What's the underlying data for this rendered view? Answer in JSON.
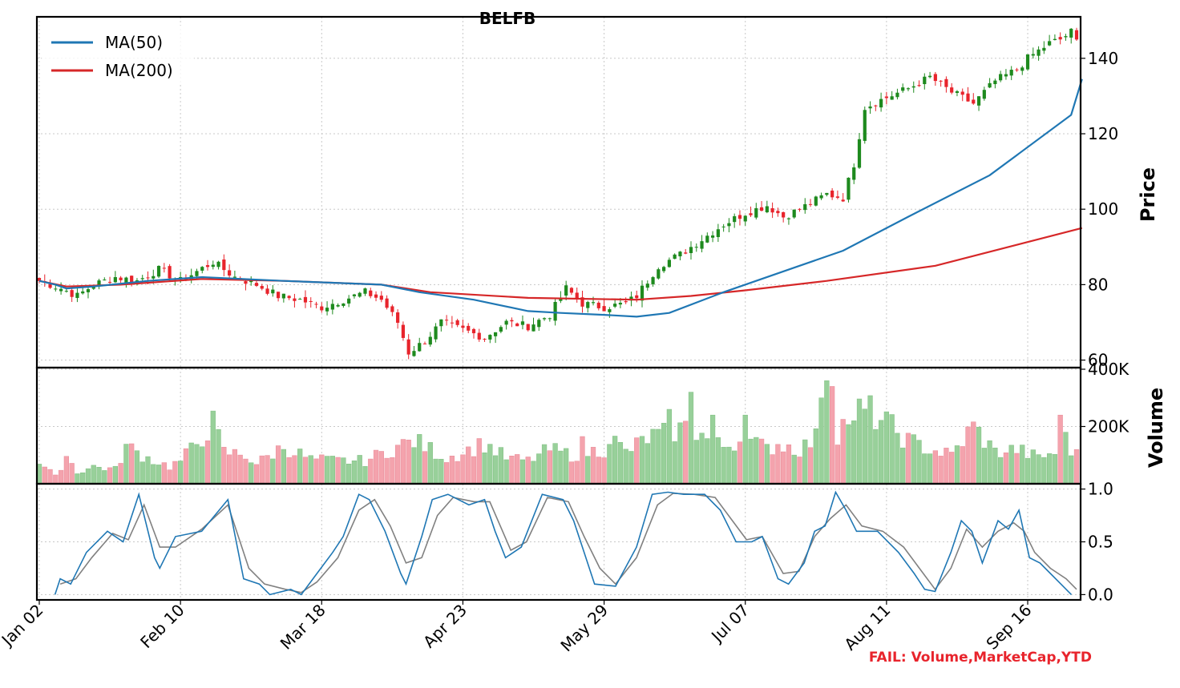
{
  "title": "BELFB",
  "fail_note": "FAIL: Volume,MarketCap,YTD",
  "colors": {
    "up": "#1e8a1e",
    "down": "#e8242c",
    "ma50": "#1f77b4",
    "ma200": "#d62728",
    "vol_up": "#98d09a",
    "vol_down": "#f4a3ad",
    "osc_k": "#1f77b4",
    "osc_d": "#808080",
    "fail": "#e8242c"
  },
  "chart_data": [
    {
      "type": "candlestick",
      "panel": "price",
      "ylabel": "Price",
      "ylim": [
        58,
        151
      ],
      "yticks": [
        60,
        80,
        100,
        120,
        140
      ],
      "ytick_labels": [
        "60",
        "80",
        "100",
        "120",
        "140"
      ],
      "grid": true,
      "legend": {
        "placement": "top-left",
        "entries": [
          "MA(50)",
          "MA(200)"
        ]
      },
      "x_tick_labels": [
        "Jan 02",
        "Feb 10",
        "Mar 18",
        "Apr 23",
        "May 29",
        "Jul 07",
        "Aug 11",
        "Sep 16"
      ],
      "x_tick_index": [
        0,
        26,
        52,
        78,
        104,
        130,
        156,
        182
      ],
      "n_bars": 192,
      "close_anchors": [
        [
          0,
          81
        ],
        [
          4,
          79
        ],
        [
          7,
          77
        ],
        [
          10,
          80
        ],
        [
          14,
          82
        ],
        [
          18,
          81
        ],
        [
          22,
          84
        ],
        [
          26,
          81
        ],
        [
          32,
          86
        ],
        [
          36,
          82
        ],
        [
          40,
          80
        ],
        [
          44,
          77
        ],
        [
          48,
          76
        ],
        [
          52,
          74
        ],
        [
          56,
          76
        ],
        [
          60,
          78
        ],
        [
          63,
          76
        ],
        [
          66,
          70
        ],
        [
          68,
          62
        ],
        [
          71,
          65
        ],
        [
          74,
          70
        ],
        [
          78,
          68
        ],
        [
          82,
          66
        ],
        [
          86,
          70
        ],
        [
          90,
          69
        ],
        [
          94,
          72
        ],
        [
          97,
          79
        ],
        [
          100,
          75
        ],
        [
          104,
          74
        ],
        [
          108,
          75
        ],
        [
          110,
          77
        ],
        [
          114,
          85
        ],
        [
          118,
          88
        ],
        [
          122,
          92
        ],
        [
          126,
          96
        ],
        [
          130,
          99
        ],
        [
          134,
          101
        ],
        [
          137,
          98
        ],
        [
          140,
          100
        ],
        [
          145,
          104
        ],
        [
          148,
          103
        ],
        [
          150,
          112
        ],
        [
          152,
          127
        ],
        [
          155,
          129
        ],
        [
          160,
          132
        ],
        [
          164,
          135
        ],
        [
          168,
          131
        ],
        [
          172,
          128
        ],
        [
          176,
          134
        ],
        [
          180,
          137
        ],
        [
          182,
          140
        ],
        [
          186,
          144
        ],
        [
          188,
          145
        ],
        [
          190,
          147
        ],
        [
          192,
          142
        ]
      ],
      "ma50": [
        [
          0,
          81
        ],
        [
          3,
          80
        ],
        [
          5,
          79
        ],
        [
          10,
          79.5
        ],
        [
          20,
          81
        ],
        [
          30,
          82
        ],
        [
          45,
          81
        ],
        [
          63,
          80
        ],
        [
          70,
          78
        ],
        [
          80,
          76
        ],
        [
          90,
          73
        ],
        [
          96,
          72.5
        ],
        [
          104,
          72
        ],
        [
          110,
          71.5
        ],
        [
          116,
          72.5
        ],
        [
          126,
          78
        ],
        [
          140,
          85
        ],
        [
          148,
          89
        ],
        [
          160,
          98
        ],
        [
          175,
          109
        ],
        [
          190,
          125
        ],
        [
          192,
          134.5
        ]
      ],
      "ma200": [
        [
          0,
          81
        ],
        [
          5,
          79.5
        ],
        [
          15,
          80
        ],
        [
          30,
          81.5
        ],
        [
          45,
          81
        ],
        [
          63,
          80
        ],
        [
          72,
          78
        ],
        [
          90,
          76.5
        ],
        [
          110,
          76
        ],
        [
          120,
          77
        ],
        [
          130,
          78.5
        ],
        [
          145,
          81
        ],
        [
          165,
          85
        ],
        [
          192,
          95
        ]
      ]
    },
    {
      "type": "bar",
      "panel": "volume",
      "ylabel": "Volume",
      "ylim": [
        0,
        400000
      ],
      "yticks": [
        200000,
        400000
      ],
      "ytick_labels": [
        "200K",
        "400K"
      ],
      "volume_anchors": [
        [
          0,
          75000
        ],
        [
          3,
          25000
        ],
        [
          5,
          100000
        ],
        [
          7,
          40000
        ],
        [
          10,
          60000
        ],
        [
          14,
          50000
        ],
        [
          16,
          130000
        ],
        [
          20,
          90000
        ],
        [
          24,
          60000
        ],
        [
          26,
          80000
        ],
        [
          28,
          120000
        ],
        [
          32,
          210000
        ],
        [
          34,
          110000
        ],
        [
          38,
          100000
        ],
        [
          40,
          70000
        ],
        [
          45,
          130000
        ],
        [
          50,
          85000
        ],
        [
          55,
          80000
        ],
        [
          60,
          80000
        ],
        [
          66,
          130000
        ],
        [
          69,
          150000
        ],
        [
          75,
          90000
        ],
        [
          78,
          110000
        ],
        [
          82,
          140000
        ],
        [
          86,
          90000
        ],
        [
          90,
          80000
        ],
        [
          94,
          120000
        ],
        [
          98,
          100000
        ],
        [
          104,
          120000
        ],
        [
          105,
          165000
        ],
        [
          108,
          110000
        ],
        [
          112,
          160000
        ],
        [
          116,
          180000
        ],
        [
          120,
          200000
        ],
        [
          124,
          140000
        ],
        [
          126,
          130000
        ],
        [
          130,
          160000
        ],
        [
          134,
          120000
        ],
        [
          136,
          140000
        ],
        [
          140,
          120000
        ],
        [
          144,
          170000
        ],
        [
          147,
          180000
        ],
        [
          150,
          260000
        ],
        [
          153,
          250000
        ],
        [
          156,
          210000
        ],
        [
          160,
          150000
        ],
        [
          164,
          120000
        ],
        [
          168,
          100000
        ],
        [
          172,
          200000
        ],
        [
          176,
          110000
        ],
        [
          180,
          120000
        ],
        [
          184,
          90000
        ],
        [
          187,
          110000
        ],
        [
          188,
          240000
        ],
        [
          190,
          120000
        ],
        [
          192,
          80000
        ]
      ],
      "volume_highlights": [
        [
          100,
          165000
        ],
        [
          116,
          260000
        ],
        [
          120,
          320000
        ],
        [
          124,
          240000
        ],
        [
          130,
          240000
        ],
        [
          144,
          300000
        ],
        [
          145,
          360000
        ],
        [
          146,
          340000
        ],
        [
          150,
          220000
        ],
        [
          188,
          240000
        ]
      ]
    },
    {
      "type": "line",
      "panel": "oscillator",
      "ylim": [
        -0.05,
        1.05
      ],
      "yticks": [
        0.0,
        0.5,
        1.0
      ],
      "ytick_labels": [
        "0.0",
        "0.5",
        "1.0"
      ],
      "k_anchors": [
        [
          3,
          0.0
        ],
        [
          4,
          0.15
        ],
        [
          6,
          0.1
        ],
        [
          9,
          0.4
        ],
        [
          13,
          0.6
        ],
        [
          16,
          0.5
        ],
        [
          19,
          0.95
        ],
        [
          22,
          0.35
        ],
        [
          23,
          0.25
        ],
        [
          26,
          0.55
        ],
        [
          31,
          0.6
        ],
        [
          36,
          0.9
        ],
        [
          39,
          0.15
        ],
        [
          42,
          0.1
        ],
        [
          44,
          0.0
        ],
        [
          48,
          0.05
        ],
        [
          50,
          0.0
        ],
        [
          53,
          0.2
        ],
        [
          56,
          0.4
        ],
        [
          58,
          0.55
        ],
        [
          61,
          0.95
        ],
        [
          63,
          0.9
        ],
        [
          66,
          0.6
        ],
        [
          69,
          0.2
        ],
        [
          70,
          0.1
        ],
        [
          73,
          0.55
        ],
        [
          75,
          0.9
        ],
        [
          78,
          0.95
        ],
        [
          82,
          0.85
        ],
        [
          85,
          0.9
        ],
        [
          87,
          0.6
        ],
        [
          89,
          0.35
        ],
        [
          92,
          0.45
        ],
        [
          96,
          0.95
        ],
        [
          100,
          0.9
        ],
        [
          102,
          0.7
        ],
        [
          104,
          0.4
        ],
        [
          106,
          0.1
        ],
        [
          110,
          0.08
        ],
        [
          114,
          0.45
        ],
        [
          117,
          0.95
        ],
        [
          120,
          0.97
        ],
        [
          123,
          0.95
        ],
        [
          127,
          0.95
        ],
        [
          130,
          0.8
        ],
        [
          133,
          0.5
        ],
        [
          136,
          0.5
        ],
        [
          138,
          0.55
        ],
        [
          141,
          0.15
        ],
        [
          143,
          0.1
        ],
        [
          146,
          0.3
        ],
        [
          148,
          0.6
        ],
        [
          150,
          0.65
        ],
        [
          152,
          0.97
        ],
        [
          154,
          0.8
        ],
        [
          156,
          0.6
        ],
        [
          160,
          0.6
        ],
        [
          164,
          0.4
        ],
        [
          167,
          0.2
        ],
        [
          169,
          0.05
        ],
        [
          171,
          0.03
        ],
        [
          174,
          0.4
        ],
        [
          176,
          0.7
        ],
        [
          178,
          0.6
        ],
        [
          180,
          0.3
        ],
        [
          183,
          0.7
        ],
        [
          185,
          0.62
        ],
        [
          187,
          0.8
        ],
        [
          189,
          0.35
        ],
        [
          191,
          0.3
        ],
        [
          193,
          0.2
        ],
        [
          195,
          0.1
        ],
        [
          197,
          0.0
        ]
      ],
      "d_anchors": [
        [
          4,
          0.1
        ],
        [
          7,
          0.15
        ],
        [
          10,
          0.35
        ],
        [
          14,
          0.58
        ],
        [
          17,
          0.52
        ],
        [
          20,
          0.85
        ],
        [
          23,
          0.45
        ],
        [
          26,
          0.45
        ],
        [
          31,
          0.62
        ],
        [
          36,
          0.85
        ],
        [
          40,
          0.25
        ],
        [
          43,
          0.1
        ],
        [
          47,
          0.05
        ],
        [
          50,
          0.02
        ],
        [
          53,
          0.12
        ],
        [
          57,
          0.35
        ],
        [
          61,
          0.8
        ],
        [
          64,
          0.9
        ],
        [
          67,
          0.65
        ],
        [
          70,
          0.3
        ],
        [
          73,
          0.35
        ],
        [
          76,
          0.75
        ],
        [
          79,
          0.92
        ],
        [
          83,
          0.88
        ],
        [
          86,
          0.88
        ],
        [
          88,
          0.65
        ],
        [
          90,
          0.42
        ],
        [
          93,
          0.5
        ],
        [
          97,
          0.92
        ],
        [
          101,
          0.88
        ],
        [
          104,
          0.55
        ],
        [
          107,
          0.25
        ],
        [
          110,
          0.1
        ],
        [
          114,
          0.35
        ],
        [
          118,
          0.85
        ],
        [
          121,
          0.96
        ],
        [
          125,
          0.95
        ],
        [
          129,
          0.92
        ],
        [
          132,
          0.72
        ],
        [
          135,
          0.52
        ],
        [
          138,
          0.55
        ],
        [
          142,
          0.2
        ],
        [
          145,
          0.22
        ],
        [
          148,
          0.55
        ],
        [
          151,
          0.72
        ],
        [
          154,
          0.85
        ],
        [
          157,
          0.65
        ],
        [
          161,
          0.6
        ],
        [
          165,
          0.45
        ],
        [
          168,
          0.25
        ],
        [
          171,
          0.05
        ],
        [
          174,
          0.25
        ],
        [
          177,
          0.62
        ],
        [
          180,
          0.45
        ],
        [
          183,
          0.6
        ],
        [
          186,
          0.68
        ],
        [
          188,
          0.6
        ],
        [
          190,
          0.4
        ],
        [
          193,
          0.25
        ],
        [
          196,
          0.15
        ],
        [
          198,
          0.05
        ]
      ]
    }
  ]
}
